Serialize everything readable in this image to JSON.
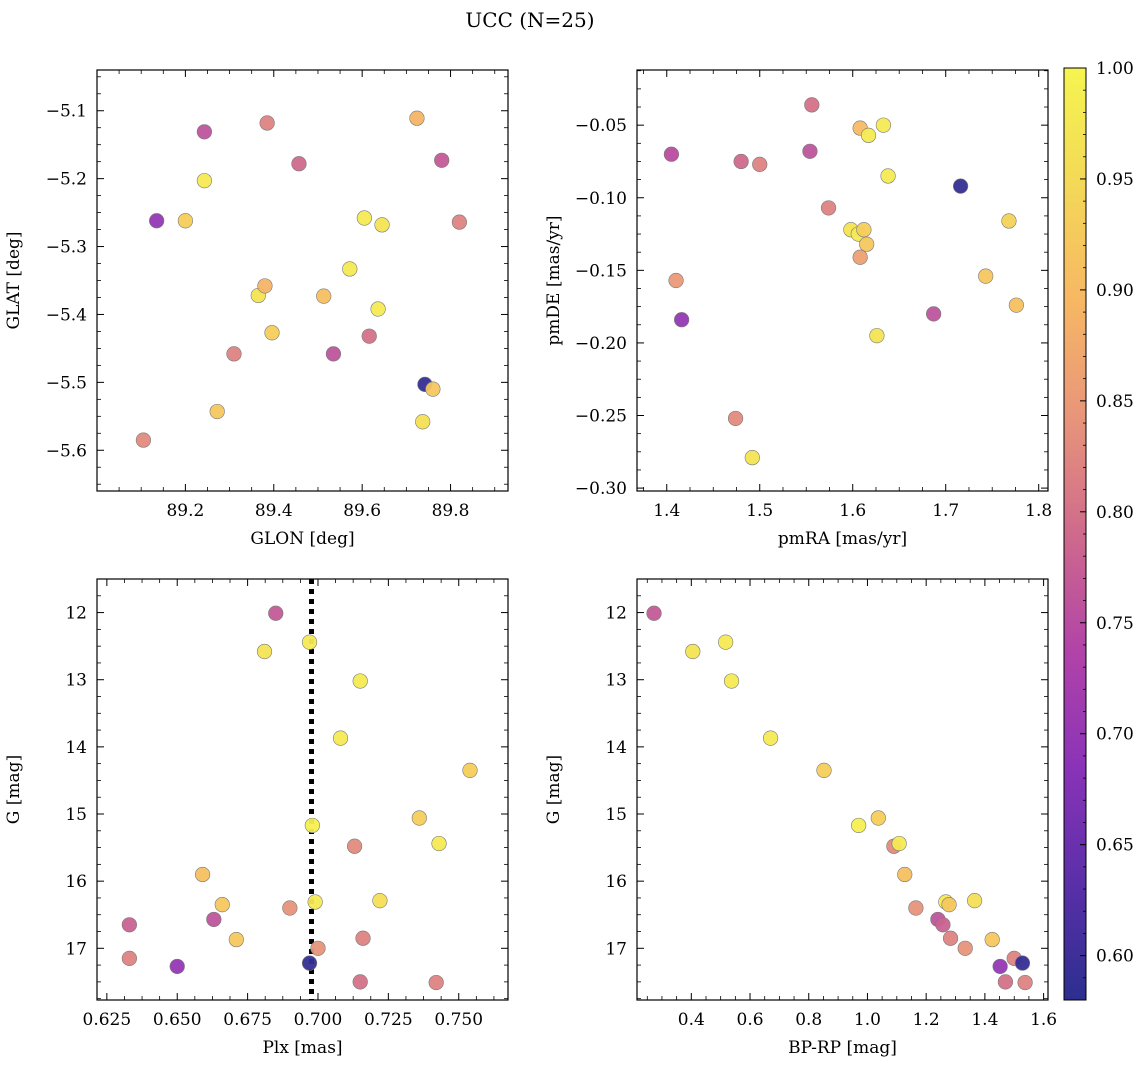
{
  "figure": {
    "title": "UCC (N=25)"
  },
  "colorbar": {
    "min": 0.58,
    "max": 1.0,
    "ticks": [
      0.6,
      0.65,
      0.7,
      0.75,
      0.8,
      0.85,
      0.9,
      0.95,
      1.0
    ],
    "tick_labels": [
      "0.60",
      "0.65",
      "0.70",
      "0.75",
      "0.80",
      "0.85",
      "0.90",
      "0.95",
      "1.00"
    ],
    "colormap": "plasma",
    "stops": [
      "#2c2f8f",
      "#5a2fa8",
      "#8a33b8",
      "#b243a8",
      "#cf6a8c",
      "#e8957a",
      "#f7b764",
      "#f4d857",
      "#f5f550"
    ]
  },
  "chart_data": [
    {
      "id": "glon-glat",
      "type": "scatter",
      "xlabel": "GLON [deg]",
      "ylabel": "GLAT [deg]",
      "xlim": [
        89.0,
        89.93
      ],
      "ylim": [
        -5.66,
        -5.04
      ],
      "y_inverted": false,
      "xticks": [
        89.2,
        89.4,
        89.6,
        89.8
      ],
      "xtick_labels": [
        "89.2",
        "89.4",
        "89.6",
        "89.8"
      ],
      "yticks": [
        -5.6,
        -5.5,
        -5.4,
        -5.3,
        -5.2,
        -5.1
      ],
      "ytick_labels": [
        "−5.6",
        "−5.5",
        "−5.4",
        "−5.3",
        "−5.2",
        "−5.1"
      ],
      "points": [
        {
          "x": 89.105,
          "y": -5.585,
          "c": 0.83
        },
        {
          "x": 89.135,
          "y": -5.262,
          "c": 0.7
        },
        {
          "x": 89.2,
          "y": -5.262,
          "c": 0.93
        },
        {
          "x": 89.243,
          "y": -5.131,
          "c": 0.76
        },
        {
          "x": 89.243,
          "y": -5.203,
          "c": 0.98
        },
        {
          "x": 89.272,
          "y": -5.543,
          "c": 0.92
        },
        {
          "x": 89.31,
          "y": -5.458,
          "c": 0.82
        },
        {
          "x": 89.365,
          "y": -5.372,
          "c": 0.97
        },
        {
          "x": 89.38,
          "y": -5.358,
          "c": 0.89
        },
        {
          "x": 89.385,
          "y": -5.118,
          "c": 0.82
        },
        {
          "x": 89.396,
          "y": -5.427,
          "c": 0.93
        },
        {
          "x": 89.457,
          "y": -5.178,
          "c": 0.79
        },
        {
          "x": 89.513,
          "y": -5.373,
          "c": 0.91
        },
        {
          "x": 89.535,
          "y": -5.458,
          "c": 0.76
        },
        {
          "x": 89.572,
          "y": -5.333,
          "c": 0.98
        },
        {
          "x": 89.605,
          "y": -5.258,
          "c": 0.98
        },
        {
          "x": 89.616,
          "y": -5.432,
          "c": 0.8
        },
        {
          "x": 89.636,
          "y": -5.392,
          "c": 0.98
        },
        {
          "x": 89.645,
          "y": -5.268,
          "c": 0.97
        },
        {
          "x": 89.724,
          "y": -5.111,
          "c": 0.89
        },
        {
          "x": 89.737,
          "y": -5.558,
          "c": 0.96
        },
        {
          "x": 89.742,
          "y": -5.503,
          "c": 0.59
        },
        {
          "x": 89.76,
          "y": -5.51,
          "c": 0.92
        },
        {
          "x": 89.78,
          "y": -5.173,
          "c": 0.77
        },
        {
          "x": 89.82,
          "y": -5.264,
          "c": 0.82
        }
      ]
    },
    {
      "id": "pmra-pmde",
      "type": "scatter",
      "xlabel": "pmRA [mas/yr]",
      "ylabel": "pmDE [mas/yr]",
      "xlim": [
        1.368,
        1.81
      ],
      "ylim": [
        -0.302,
        -0.012
      ],
      "y_inverted": false,
      "xticks": [
        1.4,
        1.5,
        1.6,
        1.7,
        1.8
      ],
      "xtick_labels": [
        "1.4",
        "1.5",
        "1.6",
        "1.7",
        "1.8"
      ],
      "yticks": [
        -0.3,
        -0.25,
        -0.2,
        -0.15,
        -0.1,
        -0.05
      ],
      "ytick_labels": [
        "−0.30",
        "−0.25",
        "−0.20",
        "−0.15",
        "−0.10",
        "−0.05"
      ],
      "points": [
        {
          "x": 1.405,
          "y": -0.07,
          "c": 0.75
        },
        {
          "x": 1.41,
          "y": -0.157,
          "c": 0.85
        },
        {
          "x": 1.416,
          "y": -0.184,
          "c": 0.7
        },
        {
          "x": 1.474,
          "y": -0.252,
          "c": 0.83
        },
        {
          "x": 1.48,
          "y": -0.075,
          "c": 0.79
        },
        {
          "x": 1.492,
          "y": -0.279,
          "c": 0.97
        },
        {
          "x": 1.5,
          "y": -0.077,
          "c": 0.82
        },
        {
          "x": 1.554,
          "y": -0.068,
          "c": 0.76
        },
        {
          "x": 1.556,
          "y": -0.036,
          "c": 0.8
        },
        {
          "x": 1.574,
          "y": -0.107,
          "c": 0.82
        },
        {
          "x": 1.598,
          "y": -0.122,
          "c": 0.97
        },
        {
          "x": 1.606,
          "y": -0.125,
          "c": 0.98
        },
        {
          "x": 1.608,
          "y": -0.141,
          "c": 0.86
        },
        {
          "x": 1.608,
          "y": -0.052,
          "c": 0.9
        },
        {
          "x": 1.612,
          "y": -0.122,
          "c": 0.93
        },
        {
          "x": 1.615,
          "y": -0.132,
          "c": 0.92
        },
        {
          "x": 1.617,
          "y": -0.057,
          "c": 0.98
        },
        {
          "x": 1.626,
          "y": -0.195,
          "c": 0.97
        },
        {
          "x": 1.633,
          "y": -0.05,
          "c": 0.98
        },
        {
          "x": 1.638,
          "y": -0.085,
          "c": 0.98
        },
        {
          "x": 1.687,
          "y": -0.18,
          "c": 0.76
        },
        {
          "x": 1.716,
          "y": -0.092,
          "c": 0.59
        },
        {
          "x": 1.743,
          "y": -0.154,
          "c": 0.92
        },
        {
          "x": 1.768,
          "y": -0.116,
          "c": 0.94
        },
        {
          "x": 1.776,
          "y": -0.174,
          "c": 0.91
        }
      ]
    },
    {
      "id": "plx-g",
      "type": "scatter",
      "xlabel": "Plx [mas]",
      "ylabel": "G [mag]",
      "xlim": [
        0.6215,
        0.7675
      ],
      "ylim": [
        11.5,
        17.77
      ],
      "y_inverted": true,
      "xticks": [
        0.625,
        0.65,
        0.675,
        0.7,
        0.725,
        0.75
      ],
      "xtick_labels": [
        "0.625",
        "0.650",
        "0.675",
        "0.700",
        "0.725",
        "0.750"
      ],
      "yticks": [
        12,
        13,
        14,
        15,
        16,
        17
      ],
      "ytick_labels": [
        "12",
        "13",
        "14",
        "15",
        "16",
        "17"
      ],
      "vline": {
        "x": 0.6977,
        "style": "dotted"
      },
      "points": [
        {
          "x": 0.633,
          "y": 16.65,
          "c": 0.78
        },
        {
          "x": 0.633,
          "y": 17.15,
          "c": 0.82
        },
        {
          "x": 0.65,
          "y": 17.27,
          "c": 0.7
        },
        {
          "x": 0.659,
          "y": 15.9,
          "c": 0.91
        },
        {
          "x": 0.663,
          "y": 16.57,
          "c": 0.76
        },
        {
          "x": 0.666,
          "y": 16.35,
          "c": 0.92
        },
        {
          "x": 0.671,
          "y": 16.87,
          "c": 0.92
        },
        {
          "x": 0.681,
          "y": 12.58,
          "c": 0.97
        },
        {
          "x": 0.685,
          "y": 12.01,
          "c": 0.77
        },
        {
          "x": 0.69,
          "y": 16.4,
          "c": 0.84
        },
        {
          "x": 0.697,
          "y": 12.44,
          "c": 0.98
        },
        {
          "x": 0.697,
          "y": 17.22,
          "c": 0.59
        },
        {
          "x": 0.698,
          "y": 15.17,
          "c": 0.99
        },
        {
          "x": 0.699,
          "y": 16.31,
          "c": 0.98
        },
        {
          "x": 0.7,
          "y": 17.0,
          "c": 0.84
        },
        {
          "x": 0.708,
          "y": 13.87,
          "c": 0.98
        },
        {
          "x": 0.713,
          "y": 15.48,
          "c": 0.83
        },
        {
          "x": 0.715,
          "y": 13.02,
          "c": 0.98
        },
        {
          "x": 0.715,
          "y": 17.5,
          "c": 0.8
        },
        {
          "x": 0.716,
          "y": 16.85,
          "c": 0.82
        },
        {
          "x": 0.722,
          "y": 16.29,
          "c": 0.96
        },
        {
          "x": 0.736,
          "y": 15.06,
          "c": 0.93
        },
        {
          "x": 0.742,
          "y": 17.51,
          "c": 0.82
        },
        {
          "x": 0.743,
          "y": 15.44,
          "c": 0.98
        },
        {
          "x": 0.754,
          "y": 14.35,
          "c": 0.93
        }
      ]
    },
    {
      "id": "bprp-g",
      "type": "scatter",
      "xlabel": "BP-RP [mag]",
      "ylabel": "G [mag]",
      "xlim": [
        0.215,
        1.615
      ],
      "ylim": [
        11.5,
        17.77
      ],
      "y_inverted": true,
      "xticks": [
        0.4,
        0.6,
        0.8,
        1.0,
        1.2,
        1.4,
        1.6
      ],
      "xtick_labels": [
        "0.4",
        "0.6",
        "0.8",
        "1.0",
        "1.2",
        "1.4",
        "1.6"
      ],
      "yticks": [
        12,
        13,
        14,
        15,
        16,
        17
      ],
      "ytick_labels": [
        "12",
        "13",
        "14",
        "15",
        "16",
        "17"
      ],
      "points": [
        {
          "x": 0.273,
          "y": 12.01,
          "c": 0.77
        },
        {
          "x": 0.405,
          "y": 12.58,
          "c": 0.97
        },
        {
          "x": 0.517,
          "y": 12.44,
          "c": 0.98
        },
        {
          "x": 0.537,
          "y": 13.02,
          "c": 0.98
        },
        {
          "x": 0.67,
          "y": 13.87,
          "c": 0.98
        },
        {
          "x": 0.852,
          "y": 14.35,
          "c": 0.93
        },
        {
          "x": 0.97,
          "y": 15.17,
          "c": 0.99
        },
        {
          "x": 1.037,
          "y": 15.06,
          "c": 0.93
        },
        {
          "x": 1.09,
          "y": 15.48,
          "c": 0.83
        },
        {
          "x": 1.108,
          "y": 15.44,
          "c": 0.98
        },
        {
          "x": 1.127,
          "y": 15.9,
          "c": 0.91
        },
        {
          "x": 1.165,
          "y": 16.4,
          "c": 0.84
        },
        {
          "x": 1.24,
          "y": 16.57,
          "c": 0.76
        },
        {
          "x": 1.257,
          "y": 16.65,
          "c": 0.78
        },
        {
          "x": 1.267,
          "y": 16.31,
          "c": 0.98
        },
        {
          "x": 1.278,
          "y": 16.35,
          "c": 0.92
        },
        {
          "x": 1.283,
          "y": 16.85,
          "c": 0.82
        },
        {
          "x": 1.333,
          "y": 17.0,
          "c": 0.84
        },
        {
          "x": 1.365,
          "y": 16.29,
          "c": 0.96
        },
        {
          "x": 1.425,
          "y": 16.87,
          "c": 0.92
        },
        {
          "x": 1.452,
          "y": 17.27,
          "c": 0.7
        },
        {
          "x": 1.47,
          "y": 17.5,
          "c": 0.8
        },
        {
          "x": 1.5,
          "y": 17.15,
          "c": 0.82
        },
        {
          "x": 1.528,
          "y": 17.22,
          "c": 0.59
        },
        {
          "x": 1.537,
          "y": 17.51,
          "c": 0.82
        }
      ]
    }
  ]
}
